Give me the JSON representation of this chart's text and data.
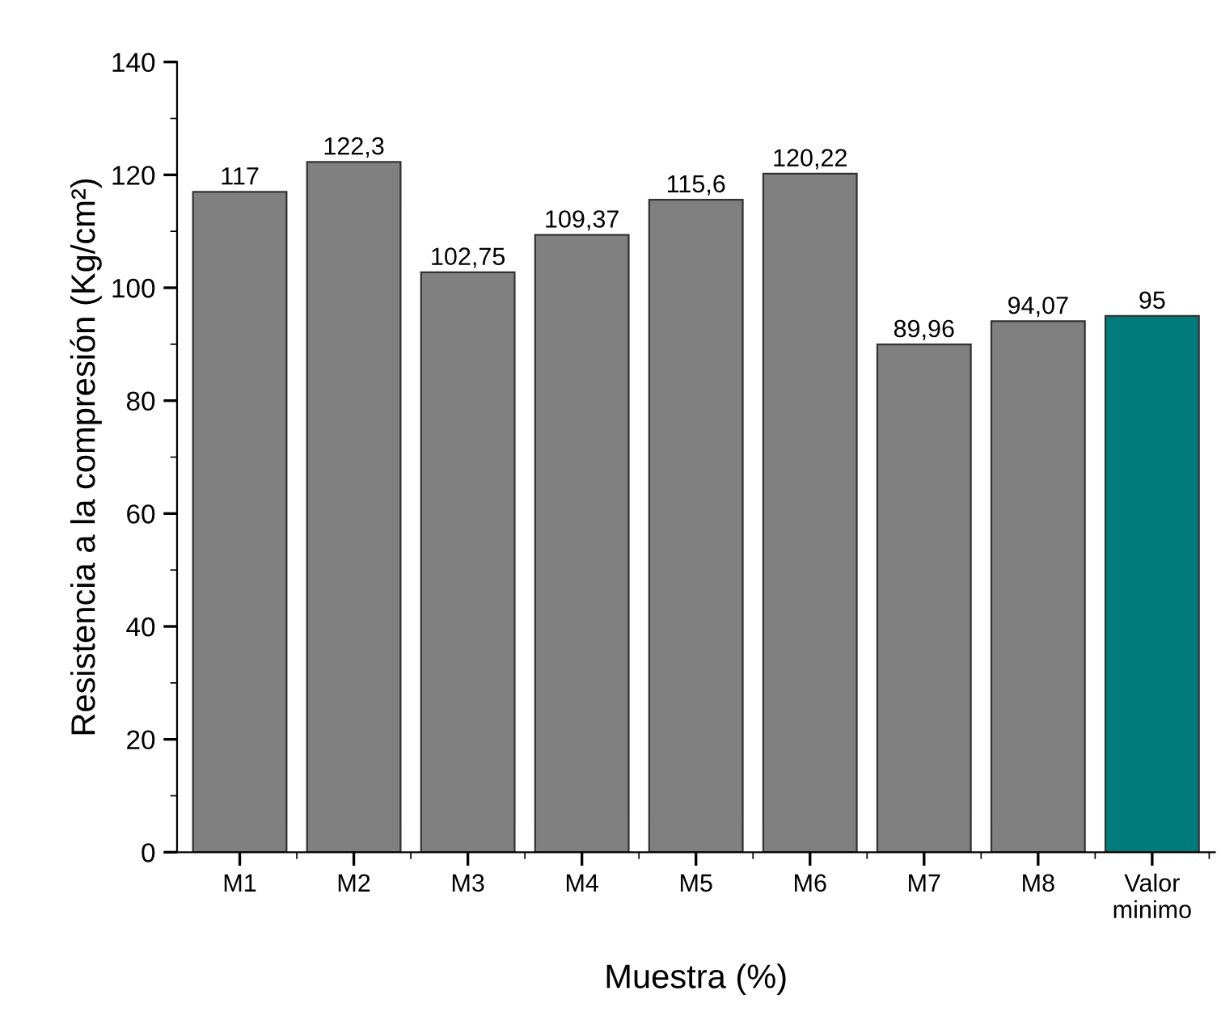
{
  "chart_data": {
    "type": "bar",
    "xlabel": "Muestra (%)",
    "ylabel": "Resistencia a la compresión (Kg/cm²)",
    "categories": [
      "M1",
      "M2",
      "M3",
      "M4",
      "M5",
      "M6",
      "M7",
      "M8",
      "Valor\nminimo"
    ],
    "values": [
      117,
      122.3,
      102.75,
      109.37,
      115.6,
      120.22,
      89.96,
      94.07,
      95
    ],
    "colors": [
      "#808080",
      "#808080",
      "#808080",
      "#808080",
      "#808080",
      "#808080",
      "#808080",
      "#808080",
      "#007b7b"
    ],
    "value_labels": [
      "117",
      "122,3",
      "102,75",
      "109,37",
      "115,6",
      "120,22",
      "89,96",
      "94,07",
      "95"
    ],
    "ylim": [
      0,
      140
    ],
    "yticks": [
      0,
      20,
      40,
      60,
      80,
      100,
      120,
      140
    ],
    "grid": false,
    "legend": false
  }
}
